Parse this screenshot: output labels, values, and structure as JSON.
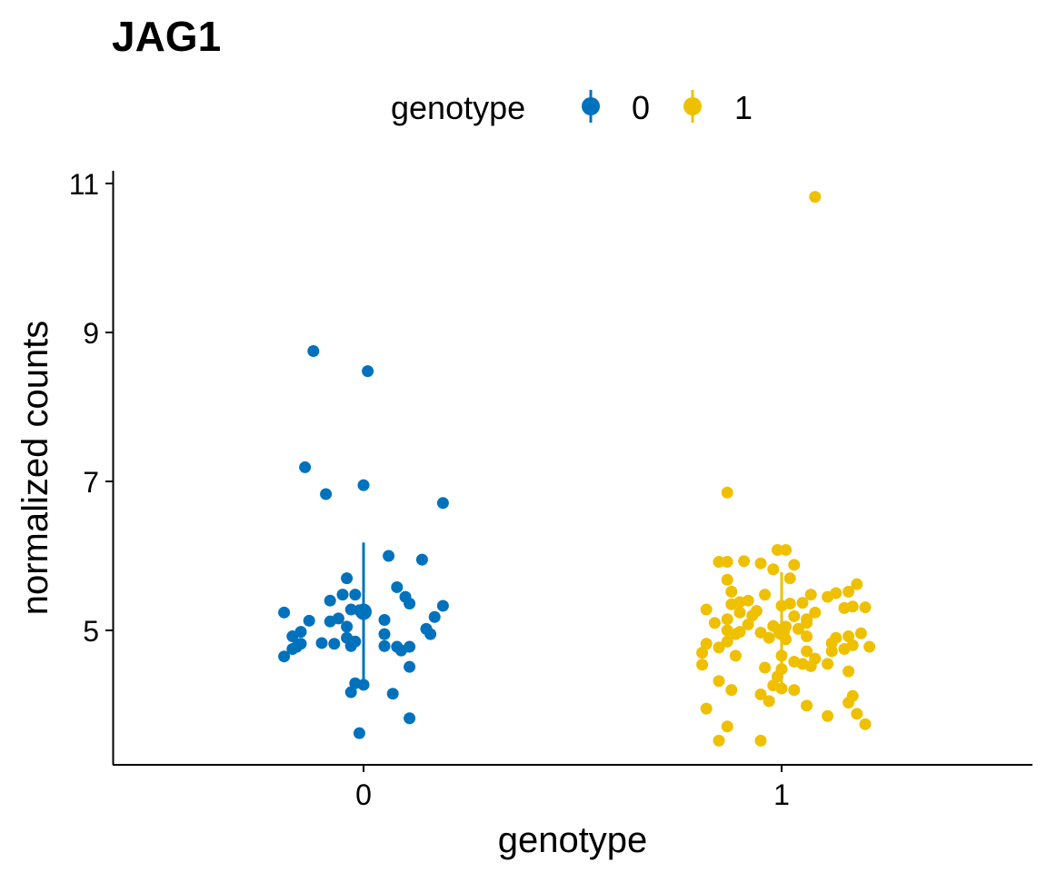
{
  "chart_data": {
    "type": "scatter",
    "title": "JAG1",
    "xlabel": "genotype",
    "ylabel": "normalized counts",
    "categories": [
      "0",
      "1"
    ],
    "ylim": [
      3.6,
      11.2
    ],
    "yticks": [
      5,
      7,
      9,
      11
    ],
    "grid": false,
    "legend": {
      "title": "genotype",
      "position": "top",
      "entries": [
        "0",
        "1"
      ]
    },
    "colors": {
      "0": "#0072BD",
      "1": "#EFC000"
    },
    "series": [
      {
        "name": "0",
        "summary": {
          "mean": 5.25,
          "low": 4.28,
          "high": 6.18
        },
        "points": [
          [
            -0.12,
            8.75
          ],
          [
            0.01,
            8.48
          ],
          [
            -0.14,
            7.19
          ],
          [
            0.0,
            6.95
          ],
          [
            -0.09,
            6.83
          ],
          [
            0.19,
            6.71
          ],
          [
            0.06,
            6.0
          ],
          [
            0.14,
            5.95
          ],
          [
            -0.04,
            5.7
          ],
          [
            0.08,
            5.58
          ],
          [
            -0.05,
            5.48
          ],
          [
            -0.02,
            5.48
          ],
          [
            0.1,
            5.45
          ],
          [
            -0.08,
            5.4
          ],
          [
            0.11,
            5.36
          ],
          [
            0.19,
            5.33
          ],
          [
            -0.03,
            5.28
          ],
          [
            -0.19,
            5.24
          ],
          [
            -0.01,
            5.27
          ],
          [
            -0.13,
            5.13
          ],
          [
            -0.06,
            5.16
          ],
          [
            0.05,
            5.14
          ],
          [
            0.17,
            5.18
          ],
          [
            -0.08,
            5.12
          ],
          [
            -0.04,
            5.05
          ],
          [
            0.15,
            5.02
          ],
          [
            -0.15,
            4.98
          ],
          [
            0.16,
            4.95
          ],
          [
            0.05,
            4.95
          ],
          [
            -0.17,
            4.92
          ],
          [
            -0.04,
            4.9
          ],
          [
            -0.02,
            4.85
          ],
          [
            -0.1,
            4.83
          ],
          [
            -0.15,
            4.82
          ],
          [
            -0.07,
            4.82
          ],
          [
            -0.03,
            4.79
          ],
          [
            0.05,
            4.79
          ],
          [
            0.08,
            4.78
          ],
          [
            0.11,
            4.78
          ],
          [
            -0.17,
            4.75
          ],
          [
            -0.16,
            4.78
          ],
          [
            0.09,
            4.73
          ],
          [
            -0.19,
            4.65
          ],
          [
            0.11,
            4.51
          ],
          [
            -0.02,
            4.29
          ],
          [
            0.0,
            4.27
          ],
          [
            -0.03,
            4.17
          ],
          [
            0.07,
            4.15
          ],
          [
            0.11,
            3.82
          ],
          [
            -0.01,
            3.62
          ]
        ]
      },
      {
        "name": "1",
        "summary": {
          "mean": 4.98,
          "low": 4.18,
          "high": 5.78
        },
        "points": [
          [
            0.08,
            10.82
          ],
          [
            -0.13,
            6.85
          ],
          [
            -0.01,
            6.08
          ],
          [
            0.01,
            6.08
          ],
          [
            -0.09,
            5.93
          ],
          [
            -0.15,
            5.92
          ],
          [
            -0.13,
            5.92
          ],
          [
            -0.05,
            5.9
          ],
          [
            0.03,
            5.88
          ],
          [
            -0.02,
            5.82
          ],
          [
            0.02,
            5.7
          ],
          [
            -0.13,
            5.68
          ],
          [
            0.18,
            5.62
          ],
          [
            -0.12,
            5.52
          ],
          [
            0.16,
            5.52
          ],
          [
            0.13,
            5.5
          ],
          [
            0.07,
            5.48
          ],
          [
            0.11,
            5.45
          ],
          [
            -0.04,
            5.48
          ],
          [
            -0.08,
            5.4
          ],
          [
            0.02,
            5.36
          ],
          [
            0.05,
            5.37
          ],
          [
            0.0,
            5.33
          ],
          [
            -0.12,
            5.35
          ],
          [
            -0.1,
            5.38
          ],
          [
            0.15,
            5.3
          ],
          [
            0.17,
            5.32
          ],
          [
            0.2,
            5.31
          ],
          [
            -0.06,
            5.26
          ],
          [
            0.08,
            5.24
          ],
          [
            -0.18,
            5.28
          ],
          [
            -0.1,
            5.24
          ],
          [
            -0.07,
            5.2
          ],
          [
            0.03,
            5.19
          ],
          [
            0.06,
            5.15
          ],
          [
            -0.13,
            5.15
          ],
          [
            -0.16,
            5.1
          ],
          [
            0.06,
            5.1
          ],
          [
            -0.08,
            5.08
          ],
          [
            -0.02,
            5.06
          ],
          [
            0.01,
            5.05
          ],
          [
            0.04,
            5.02
          ],
          [
            -0.13,
            5.0
          ],
          [
            -0.1,
            4.98
          ],
          [
            -0.11,
            4.95
          ],
          [
            -0.05,
            4.97
          ],
          [
            0.0,
            4.95
          ],
          [
            0.06,
            4.92
          ],
          [
            0.13,
            4.9
          ],
          [
            0.19,
            4.96
          ],
          [
            0.16,
            4.92
          ],
          [
            0.01,
            4.88
          ],
          [
            -0.03,
            4.9
          ],
          [
            -0.13,
            4.85
          ],
          [
            0.12,
            4.83
          ],
          [
            0.17,
            4.8
          ],
          [
            0.21,
            4.78
          ],
          [
            -0.18,
            4.82
          ],
          [
            -0.15,
            4.77
          ],
          [
            0.15,
            4.75
          ],
          [
            0.06,
            4.72
          ],
          [
            0.12,
            4.72
          ],
          [
            -0.19,
            4.7
          ],
          [
            -0.11,
            4.66
          ],
          [
            0.0,
            4.66
          ],
          [
            0.08,
            4.62
          ],
          [
            0.03,
            4.58
          ],
          [
            0.05,
            4.55
          ],
          [
            0.07,
            4.52
          ],
          [
            0.11,
            4.55
          ],
          [
            -0.04,
            4.5
          ],
          [
            0.0,
            4.48
          ],
          [
            -0.19,
            4.54
          ],
          [
            0.16,
            4.45
          ],
          [
            -0.01,
            4.38
          ],
          [
            -0.15,
            4.32
          ],
          [
            -0.12,
            4.2
          ],
          [
            -0.02,
            4.26
          ],
          [
            0.03,
            4.2
          ],
          [
            0.0,
            4.22
          ],
          [
            -0.05,
            4.14
          ],
          [
            0.17,
            4.12
          ],
          [
            -0.03,
            4.05
          ],
          [
            0.16,
            4.03
          ],
          [
            -0.18,
            3.95
          ],
          [
            0.06,
            3.99
          ],
          [
            0.11,
            3.85
          ],
          [
            0.18,
            3.88
          ],
          [
            -0.13,
            3.71
          ],
          [
            0.2,
            3.74
          ],
          [
            -0.15,
            3.52
          ],
          [
            -0.05,
            3.52
          ]
        ]
      }
    ]
  }
}
